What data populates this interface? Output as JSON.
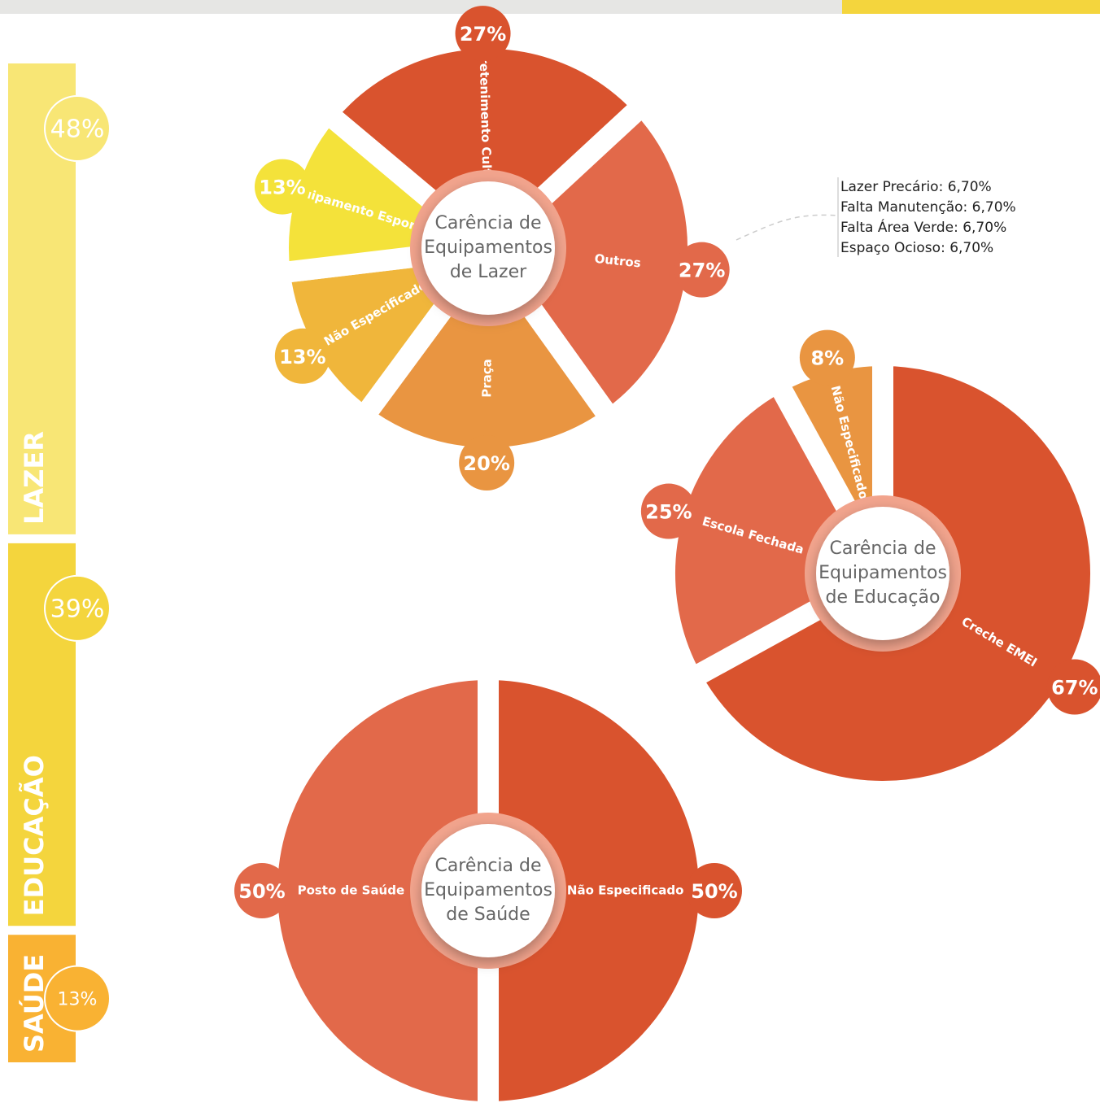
{
  "chart_data": [
    {
      "type": "bar",
      "categories": [
        "LAZER",
        "EDUCAÇÃO",
        "SAÚDE"
      ],
      "values": [
        48,
        39,
        13
      ],
      "value_labels": [
        "48%",
        "39%",
        "13%"
      ],
      "colors": [
        "#f8e675",
        "#f4d53d",
        "#f9b233"
      ]
    },
    {
      "type": "pie",
      "title": "Carência de Equipamentos de Lazer",
      "categories": [
        "Entretenimento Cultural",
        "Outros",
        "Praça",
        "Não Especificado",
        "Equipamento Esportivo"
      ],
      "values": [
        27,
        27,
        20,
        13,
        13
      ],
      "value_labels": [
        "27%",
        "27%",
        "20%",
        "13%",
        "13%"
      ],
      "colors": [
        "#d9532e",
        "#e2694a",
        "#e99541",
        "#f0b63b",
        "#f4e23a"
      ],
      "annotations": [
        "Lazer Precário: 6,70%",
        "Falta Manutenção: 6,70%",
        "Falta Área Verde: 6,70%",
        "Espaço Ocioso: 6,70%"
      ]
    },
    {
      "type": "pie",
      "title": "Carência de Equipamentos de Educação",
      "categories": [
        "Creche EMEI",
        "Escola Fechada",
        "Não Especificado"
      ],
      "values": [
        67,
        25,
        8
      ],
      "value_labels": [
        "67%",
        "25%",
        "8%"
      ],
      "colors": [
        "#d9532e",
        "#e2694a",
        "#e99541"
      ]
    },
    {
      "type": "pie",
      "title": "Carência de Equipamentos de Saúde",
      "categories": [
        "Não Especificado",
        "Posto de Saúde"
      ],
      "values": [
        50,
        50
      ],
      "value_labels": [
        "50%",
        "50%"
      ],
      "colors": [
        "#d9532e",
        "#e2694a"
      ]
    }
  ]
}
